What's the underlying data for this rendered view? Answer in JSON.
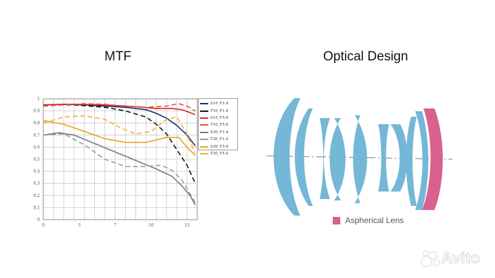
{
  "mtf_title": "MTF",
  "design_title": "Optical Design",
  "aspherical_label": "Aspherical Lens",
  "watermark": "Avito",
  "colors": {
    "lens_blue": "#74b7d6",
    "aspherical_pink": "#d9608f",
    "grid": "#c8c8c8",
    "axis_line": "#7a7a7a"
  },
  "chart_data": {
    "type": "line",
    "title": "MTF",
    "xlabel": "",
    "ylabel": "",
    "xlim": [
      0,
      15
    ],
    "ylim": [
      0,
      1
    ],
    "x_ticks": [
      "0",
      "3",
      "7",
      "10",
      "13"
    ],
    "x_tick_values": [
      0,
      3.5,
      7,
      10.5,
      14
    ],
    "y_ticks": [
      "0",
      "0.1",
      "0.2",
      "0.3",
      "0.4",
      "0.5",
      "0.6",
      "0.7",
      "0.8",
      "0.9",
      "1"
    ],
    "grid": true,
    "legend_position": "top-right",
    "series": [
      {
        "name": "S10_F1.4",
        "color": "#1a2a6c",
        "dash": false,
        "points": [
          [
            0,
            0.95
          ],
          [
            2,
            0.955
          ],
          [
            4,
            0.95
          ],
          [
            6,
            0.94
          ],
          [
            8,
            0.93
          ],
          [
            10,
            0.91
          ],
          [
            11,
            0.88
          ],
          [
            12,
            0.84
          ],
          [
            13,
            0.78
          ],
          [
            14,
            0.7
          ],
          [
            14.8,
            0.61
          ]
        ]
      },
      {
        "name": "T10_F1.4",
        "color": "#111111",
        "dash": true,
        "points": [
          [
            0,
            0.95
          ],
          [
            3,
            0.95
          ],
          [
            6,
            0.93
          ],
          [
            8,
            0.9
          ],
          [
            10,
            0.85
          ],
          [
            11,
            0.79
          ],
          [
            12,
            0.71
          ],
          [
            13,
            0.58
          ],
          [
            14,
            0.45
          ],
          [
            14.8,
            0.3
          ]
        ]
      },
      {
        "name": "S10_F5.6",
        "color": "#d62020",
        "dash": false,
        "points": [
          [
            0,
            0.95
          ],
          [
            3,
            0.955
          ],
          [
            6,
            0.95
          ],
          [
            9,
            0.935
          ],
          [
            11,
            0.92
          ],
          [
            12.5,
            0.92
          ],
          [
            13.5,
            0.91
          ],
          [
            14.8,
            0.87
          ]
        ]
      },
      {
        "name": "T10_F5.6",
        "color": "#e8503a",
        "dash": true,
        "points": [
          [
            0,
            0.94
          ],
          [
            2,
            0.95
          ],
          [
            4,
            0.96
          ],
          [
            6,
            0.955
          ],
          [
            8,
            0.94
          ],
          [
            10,
            0.93
          ],
          [
            12,
            0.94
          ],
          [
            13.2,
            0.96
          ],
          [
            14,
            0.94
          ],
          [
            14.8,
            0.9
          ]
        ]
      },
      {
        "name": "S30_F1.4",
        "color": "#7a7a7a",
        "dash": false,
        "points": [
          [
            0,
            0.7
          ],
          [
            1.5,
            0.72
          ],
          [
            3,
            0.7
          ],
          [
            5,
            0.63
          ],
          [
            7,
            0.56
          ],
          [
            9,
            0.49
          ],
          [
            11,
            0.42
          ],
          [
            12.5,
            0.36
          ],
          [
            13.5,
            0.28
          ],
          [
            14.3,
            0.2
          ],
          [
            14.8,
            0.12
          ]
        ]
      },
      {
        "name": "T30_F1.4",
        "color": "#999999",
        "dash": true,
        "points": [
          [
            0,
            0.7
          ],
          [
            2,
            0.71
          ],
          [
            4,
            0.62
          ],
          [
            6,
            0.5
          ],
          [
            8,
            0.44
          ],
          [
            10,
            0.44
          ],
          [
            11.5,
            0.45
          ],
          [
            12.5,
            0.41
          ],
          [
            13.5,
            0.33
          ],
          [
            14.8,
            0.14
          ]
        ]
      },
      {
        "name": "S30_F5.6",
        "color": "#e8a21a",
        "dash": false,
        "points": [
          [
            0,
            0.82
          ],
          [
            2,
            0.79
          ],
          [
            4,
            0.73
          ],
          [
            6,
            0.67
          ],
          [
            8,
            0.64
          ],
          [
            10,
            0.64
          ],
          [
            12,
            0.68
          ],
          [
            13.2,
            0.68
          ],
          [
            14,
            0.6
          ],
          [
            14.8,
            0.53
          ]
        ]
      },
      {
        "name": "T30_F5.6",
        "color": "#f0b030",
        "dash": true,
        "points": [
          [
            0,
            0.8
          ],
          [
            2,
            0.85
          ],
          [
            4,
            0.86
          ],
          [
            6,
            0.83
          ],
          [
            7.5,
            0.76
          ],
          [
            9,
            0.71
          ],
          [
            10.5,
            0.73
          ],
          [
            12,
            0.83
          ],
          [
            13,
            0.85
          ],
          [
            13.8,
            0.74
          ],
          [
            14.8,
            0.55
          ]
        ]
      }
    ]
  }
}
